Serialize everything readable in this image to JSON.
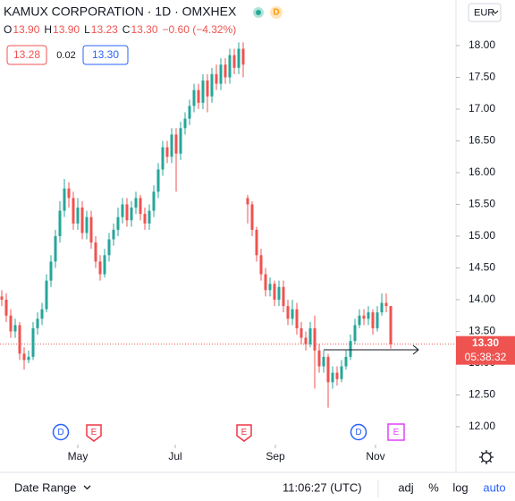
{
  "header": {
    "title": "KAMUX CORPORATION · 1D · OMXHEX",
    "badge": "D",
    "ohlc": [
      {
        "label": "O",
        "value": "13.90"
      },
      {
        "label": "H",
        "value": "13.90"
      },
      {
        "label": "L",
        "value": "13.23"
      },
      {
        "label": "C",
        "value": "13.30"
      }
    ],
    "change": "−0.60 (−4.32%)",
    "bid": "13.28",
    "spread": "0.02",
    "ask": "13.30",
    "currency": "EUR"
  },
  "chart_data": {
    "type": "candlestick",
    "x": [
      0,
      1,
      2,
      3,
      4,
      5,
      6,
      7,
      8,
      9,
      10,
      11,
      12,
      13,
      14,
      15,
      16,
      17,
      18,
      19,
      20,
      21,
      22,
      23,
      24,
      25,
      26,
      27,
      28,
      29,
      30,
      31,
      32,
      33,
      34,
      35,
      36,
      37,
      38,
      39,
      40,
      41,
      42,
      43,
      44,
      45,
      46,
      47,
      48,
      49,
      50,
      51,
      52,
      53,
      54,
      55,
      56,
      57,
      58,
      59,
      60,
      61,
      62,
      63,
      64,
      65,
      66,
      67,
      68,
      69,
      70,
      71,
      72,
      73,
      74,
      75,
      76,
      77,
      78,
      79,
      80,
      81,
      82,
      83,
      84,
      85,
      86,
      87
    ],
    "open": [
      14.05,
      14.0,
      13.75,
      13.5,
      13.6,
      13.15,
      13.05,
      13.1,
      13.55,
      13.7,
      13.85,
      14.3,
      14.6,
      15.0,
      15.4,
      15.75,
      15.6,
      15.2,
      15.45,
      15.05,
      15.3,
      14.9,
      14.6,
      14.4,
      14.7,
      14.95,
      15.1,
      15.3,
      15.5,
      15.25,
      15.45,
      15.6,
      15.35,
      15.2,
      15.4,
      15.7,
      16.05,
      16.4,
      16.25,
      16.6,
      16.3,
      16.7,
      16.85,
      17.05,
      17.3,
      17.1,
      17.45,
      17.2,
      17.55,
      17.4,
      17.7,
      17.5,
      17.85,
      17.65,
      17.95,
      15.6,
      15.5,
      15.1,
      14.7,
      14.4,
      14.15,
      14.25,
      14.0,
      14.2,
      13.9,
      13.7,
      13.85,
      13.55,
      13.4,
      13.3,
      13.55,
      13.2,
      12.95,
      13.1,
      12.7,
      12.85,
      12.75,
      12.95,
      13.1,
      13.35,
      13.6,
      13.75,
      13.7,
      13.8,
      13.55,
      13.8,
      13.95,
      13.9
    ],
    "high": [
      14.15,
      14.1,
      13.85,
      13.7,
      13.65,
      13.25,
      13.2,
      13.65,
      13.8,
      13.95,
      14.4,
      14.7,
      15.1,
      15.55,
      15.9,
      15.85,
      15.7,
      15.6,
      15.55,
      15.4,
      15.4,
      15.0,
      14.7,
      14.8,
      15.05,
      15.2,
      15.45,
      15.6,
      15.6,
      15.55,
      15.7,
      15.65,
      15.45,
      15.5,
      15.8,
      16.15,
      16.5,
      16.5,
      16.7,
      16.7,
      16.8,
      16.95,
      17.15,
      17.4,
      17.4,
      17.55,
      17.55,
      17.65,
      17.7,
      17.8,
      17.8,
      17.95,
      17.95,
      18.05,
      18.05,
      15.65,
      15.55,
      15.15,
      14.8,
      14.5,
      14.35,
      14.3,
      14.3,
      14.3,
      14.0,
      14.0,
      13.95,
      13.65,
      13.5,
      13.65,
      13.75,
      13.3,
      13.2,
      13.15,
      12.95,
      12.95,
      13.05,
      13.2,
      13.45,
      13.7,
      13.85,
      13.85,
      13.9,
      13.85,
      13.9,
      14.1,
      14.1,
      13.9
    ],
    "low": [
      13.9,
      13.65,
      13.4,
      13.4,
      13.05,
      12.9,
      13.0,
      13.05,
      13.45,
      13.6,
      13.8,
      14.2,
      14.5,
      14.9,
      15.3,
      15.45,
      15.1,
      15.1,
      14.95,
      14.95,
      14.8,
      14.5,
      14.3,
      14.35,
      14.6,
      14.85,
      15.0,
      15.2,
      15.15,
      15.15,
      15.35,
      15.25,
      15.1,
      15.1,
      15.3,
      15.6,
      15.95,
      16.15,
      16.15,
      15.7,
      16.2,
      16.6,
      16.75,
      16.95,
      17.0,
      17.0,
      16.95,
      17.1,
      17.3,
      17.3,
      17.4,
      17.4,
      17.55,
      17.55,
      17.5,
      15.2,
      15.0,
      14.6,
      14.3,
      14.05,
      14.05,
      13.9,
      13.9,
      13.8,
      13.6,
      13.6,
      13.45,
      13.3,
      13.2,
      13.25,
      12.6,
      12.85,
      12.85,
      12.3,
      12.6,
      12.65,
      12.7,
      12.9,
      13.05,
      13.3,
      13.55,
      13.6,
      13.6,
      13.45,
      13.5,
      13.75,
      13.8,
      13.23
    ],
    "close": [
      14.0,
      13.75,
      13.5,
      13.6,
      13.15,
      13.05,
      13.1,
      13.55,
      13.7,
      13.85,
      14.3,
      14.6,
      15.0,
      15.4,
      15.75,
      15.6,
      15.2,
      15.45,
      15.05,
      15.3,
      14.9,
      14.6,
      14.4,
      14.7,
      14.95,
      15.1,
      15.3,
      15.5,
      15.25,
      15.45,
      15.6,
      15.35,
      15.2,
      15.4,
      15.7,
      16.05,
      16.4,
      16.25,
      16.6,
      16.3,
      16.7,
      16.85,
      17.05,
      17.3,
      17.1,
      17.45,
      17.2,
      17.55,
      17.4,
      17.7,
      17.5,
      17.85,
      17.65,
      17.95,
      17.7,
      15.5,
      15.1,
      14.7,
      14.4,
      14.15,
      14.25,
      14.0,
      14.2,
      13.9,
      13.7,
      13.85,
      13.55,
      13.4,
      13.3,
      13.55,
      13.2,
      12.95,
      13.1,
      12.7,
      12.85,
      12.75,
      12.95,
      13.1,
      13.35,
      13.6,
      13.75,
      13.7,
      13.8,
      13.55,
      13.8,
      13.95,
      13.9,
      13.3
    ],
    "up_color": "#26a69a",
    "down_color": "#ef5350",
    "xlim": [
      -0.4,
      101.6
    ],
    "xticks": [
      {
        "value": 17,
        "label": "May"
      },
      {
        "value": 38.8,
        "label": "Jul"
      },
      {
        "value": 61.2,
        "label": "Sep"
      },
      {
        "value": 83.6,
        "label": "Nov"
      }
    ],
    "ylim": [
      11.746,
      18.718
    ],
    "yticks": [
      {
        "value": 12,
        "label": "12.00"
      },
      {
        "value": 12.5,
        "label": "12.50"
      },
      {
        "value": 13,
        "label": "13.00"
      },
      {
        "value": 13.5,
        "label": "13.50"
      },
      {
        "value": 14,
        "label": "14.00"
      },
      {
        "value": 14.5,
        "label": "14.50"
      },
      {
        "value": 15,
        "label": "15.00"
      },
      {
        "value": 15.5,
        "label": "15.50"
      },
      {
        "value": 16,
        "label": "16.00"
      },
      {
        "value": 16.5,
        "label": "16.50"
      },
      {
        "value": 17,
        "label": "17.00"
      },
      {
        "value": 17.5,
        "label": "17.50"
      },
      {
        "value": 18,
        "label": "18.00"
      }
    ],
    "last_price": {
      "value": 13.3,
      "label": "13.30"
    },
    "countdown": "05:38:32",
    "events": [
      {
        "label": "D",
        "x": 13.2,
        "color": "#2962ff"
      },
      {
        "label": "E",
        "x": 20.6,
        "color": "#f23645"
      },
      {
        "label": "E",
        "x": 54.2,
        "color": "#f23645"
      },
      {
        "label": "D",
        "x": 79.8,
        "color": "#2962ff"
      },
      {
        "label": "E",
        "x": 88.2,
        "color": "#e040fb"
      }
    ]
  },
  "footer": {
    "date_range": "Date Range",
    "time": "11:06:27 (UTC)",
    "buttons": [
      "adj",
      "%",
      "log",
      "auto"
    ]
  }
}
